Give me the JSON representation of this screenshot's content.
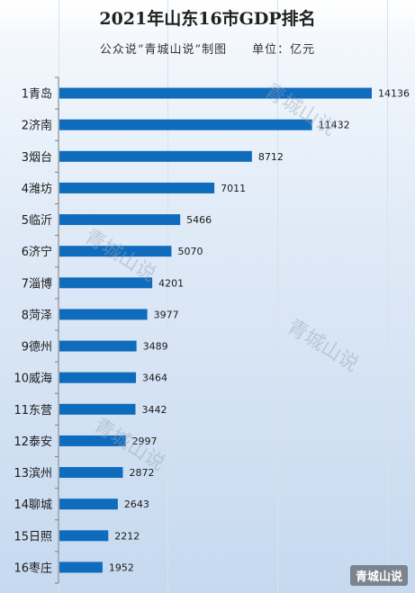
{
  "title": "2021年山东16市GDP排名",
  "subtitle": "公众说“青城山说”制图　　单位：亿元",
  "watermark": "青城山说",
  "corner_badge": "青城山说",
  "colors": {
    "bar": "#0f6cbd",
    "axis": "#7f7f7f",
    "text": "#1a1a1a"
  },
  "chart_data": {
    "type": "bar",
    "orientation": "horizontal",
    "title": "2021年山东16市GDP排名",
    "unit": "亿元",
    "categories": [
      "1青岛",
      "2济南",
      "3烟台",
      "4潍坊",
      "5临沂",
      "6济宁",
      "7淄博",
      "8菏泽",
      "9德州",
      "10威海",
      "11东营",
      "12泰安",
      "13滨州",
      "14聊城",
      "15日照",
      "16枣庄"
    ],
    "values": [
      14136,
      11432,
      8712,
      7011,
      5466,
      5070,
      4201,
      3977,
      3489,
      3464,
      3442,
      2997,
      2872,
      2643,
      2212,
      1952
    ],
    "xlim": [
      0,
      16000
    ],
    "grid": true,
    "legend": "none"
  }
}
